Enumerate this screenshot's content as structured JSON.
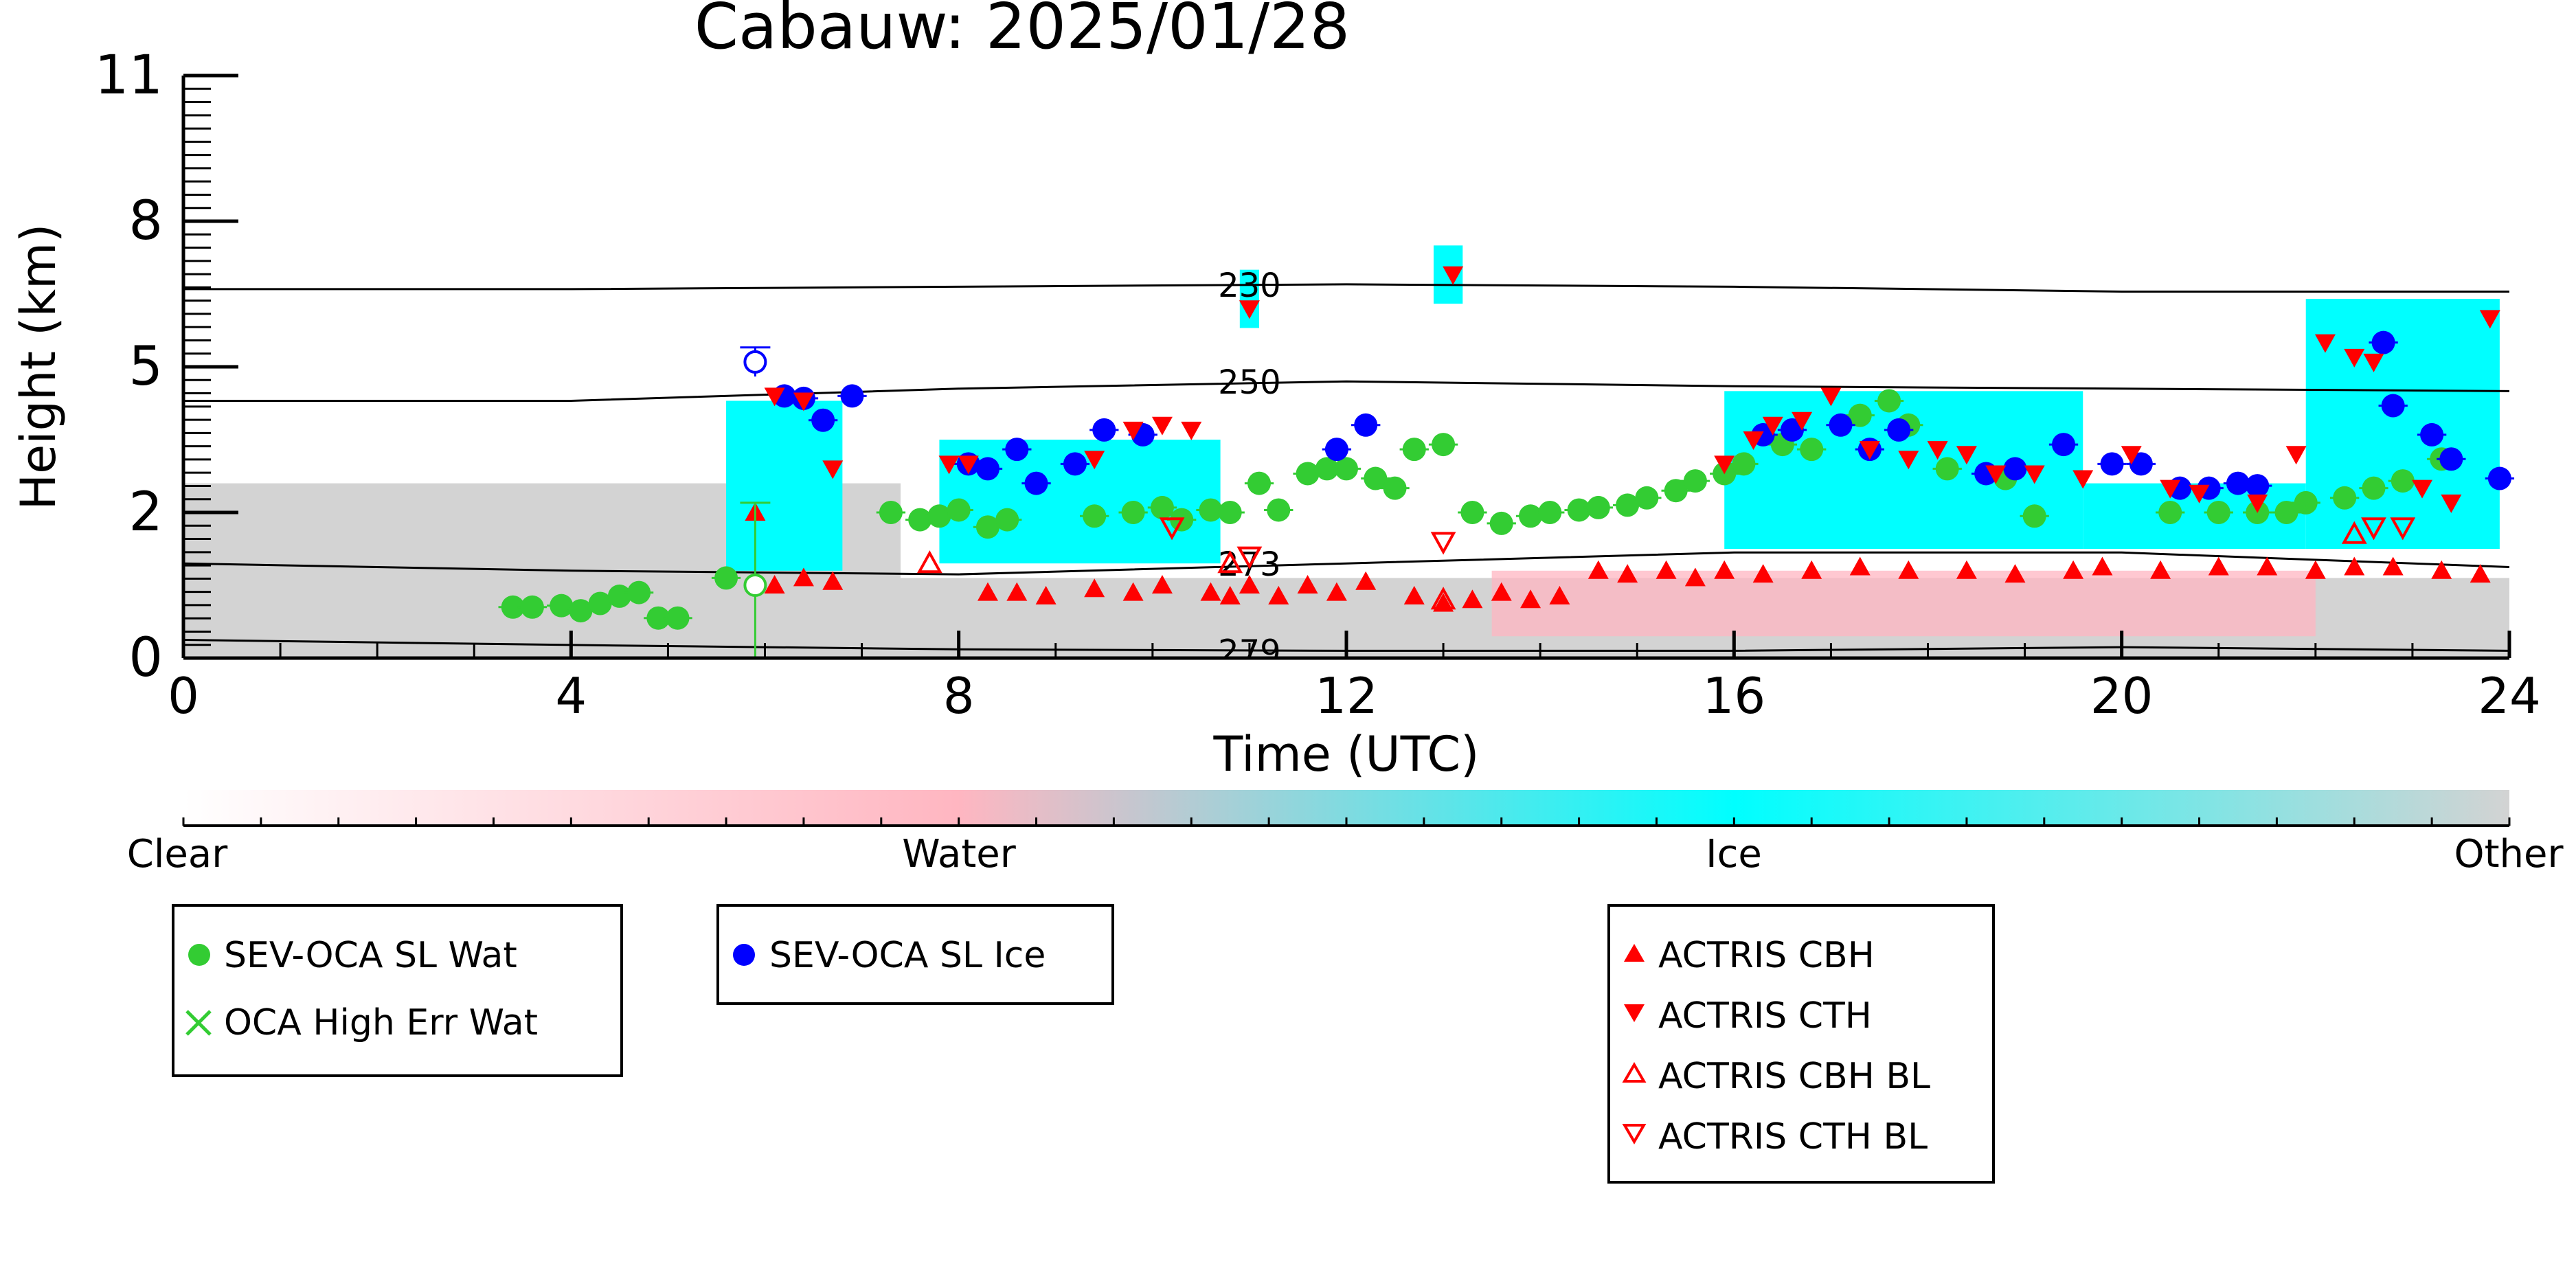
{
  "chart_data": {
    "type": "scatter",
    "title": "Cabauw: 2025/01/28",
    "xlabel": "Time (UTC)",
    "ylabel": "Height (km)",
    "xlim": [
      0,
      24
    ],
    "ylim": [
      0,
      11
    ],
    "x_ticks": [
      "0",
      "4",
      "8",
      "12",
      "16",
      "20",
      "24"
    ],
    "y_ticks": [
      "0",
      "2",
      "5",
      "8",
      "11"
    ],
    "y_tick_values": [
      0,
      2,
      5,
      8,
      11
    ],
    "colors": {
      "clear": "#ffffff",
      "water": "#ffb6c1",
      "ice": "#00ffff",
      "other": "#d3d3d3",
      "sev_wat": "#33cc33",
      "sev_ice": "#0000ff",
      "actris": "#ff0000"
    },
    "colorbar": {
      "labels": [
        "Clear",
        "Water",
        "Ice",
        "Other"
      ]
    },
    "isotherms": [
      {
        "label": "230",
        "points": [
          [
            0,
            6.6
          ],
          [
            4,
            6.6
          ],
          [
            8,
            6.65
          ],
          [
            12,
            6.7
          ],
          [
            16,
            6.65
          ],
          [
            20,
            6.55
          ],
          [
            24,
            6.55
          ]
        ]
      },
      {
        "label": "250",
        "points": [
          [
            0,
            4.3
          ],
          [
            4,
            4.3
          ],
          [
            8,
            4.55
          ],
          [
            12,
            4.7
          ],
          [
            16,
            4.6
          ],
          [
            20,
            4.55
          ],
          [
            24,
            4.5
          ]
        ]
      },
      {
        "label": "273",
        "points": [
          [
            0,
            1.3
          ],
          [
            4,
            1.2
          ],
          [
            8,
            1.15
          ],
          [
            12,
            1.3
          ],
          [
            16,
            1.45
          ],
          [
            20,
            1.45
          ],
          [
            24,
            1.25
          ]
        ]
      },
      {
        "label": "279",
        "points": [
          [
            0,
            0.25
          ],
          [
            4,
            0.18
          ],
          [
            8,
            0.12
          ],
          [
            12,
            0.1
          ],
          [
            16,
            0.1
          ],
          [
            20,
            0.15
          ],
          [
            24,
            0.1
          ]
        ]
      }
    ],
    "background": [
      {
        "category": "other",
        "x": [
          0,
          7.4
        ],
        "y": [
          0,
          2.6
        ]
      },
      {
        "category": "other",
        "x": [
          7.4,
          24
        ],
        "y": [
          0,
          1.1
        ]
      },
      {
        "category": "water",
        "x": [
          13.5,
          22
        ],
        "y": [
          0.3,
          1.2
        ]
      },
      {
        "category": "ice",
        "x": [
          5.6,
          6.8
        ],
        "y": [
          1.2,
          4.3
        ]
      },
      {
        "category": "ice",
        "x": [
          7.8,
          10.7
        ],
        "y": [
          1.3,
          3.5
        ]
      },
      {
        "category": "ice",
        "x": [
          10.9,
          11.1
        ],
        "y": [
          5.8,
          7.0
        ]
      },
      {
        "category": "ice",
        "x": [
          12.9,
          13.2
        ],
        "y": [
          6.3,
          7.5
        ]
      },
      {
        "category": "ice",
        "x": [
          15.9,
          19.6
        ],
        "y": [
          1.5,
          4.5
        ]
      },
      {
        "category": "ice",
        "x": [
          19.6,
          21.9
        ],
        "y": [
          1.5,
          2.6
        ]
      },
      {
        "category": "ice",
        "x": [
          21.9,
          23.9
        ],
        "y": [
          1.5,
          6.4
        ]
      },
      {
        "category": "ice",
        "x": [
          23.1,
          23.7
        ],
        "y": [
          5.0,
          5.8
        ]
      }
    ],
    "series": [
      {
        "name": "SEV-OCA SL Wat",
        "marker": "circle",
        "color": "#33cc33",
        "x": [
          3.4,
          3.6,
          3.9,
          4.1,
          4.3,
          4.5,
          4.7,
          4.9,
          5.1,
          5.6,
          7.3,
          7.6,
          7.8,
          8.0,
          8.3,
          8.5,
          9.4,
          9.8,
          10.1,
          10.3,
          10.6,
          10.8,
          11.1,
          11.3,
          11.6,
          11.8,
          12.0,
          12.3,
          12.5,
          12.7,
          13.0,
          13.3,
          13.6,
          13.9,
          14.1,
          14.4,
          14.6,
          14.9,
          15.1,
          15.4,
          15.6,
          15.9,
          16.1,
          16.5,
          16.8,
          17.3,
          17.6,
          17.8,
          18.2,
          18.8,
          19.1,
          20.5,
          21.0,
          21.4,
          21.7,
          21.9,
          22.3,
          22.6,
          22.9,
          23.3
        ],
        "y": [
          0.7,
          0.7,
          0.72,
          0.65,
          0.75,
          0.85,
          0.9,
          0.55,
          0.55,
          1.1,
          2.0,
          1.9,
          1.95,
          2.05,
          1.8,
          1.9,
          1.95,
          2.0,
          2.1,
          1.9,
          2.05,
          2.0,
          2.6,
          2.05,
          2.8,
          2.9,
          2.9,
          2.7,
          2.5,
          3.3,
          3.4,
          2.0,
          1.85,
          1.95,
          2.0,
          2.05,
          2.1,
          2.15,
          2.3,
          2.45,
          2.65,
          2.8,
          3.0,
          3.4,
          3.3,
          4.0,
          4.3,
          3.8,
          2.9,
          2.7,
          1.95,
          2.0,
          2.0,
          2.0,
          2.0,
          2.2,
          2.3,
          2.5,
          2.65,
          3.1
        ]
      },
      {
        "name": "OCA High Err Wat",
        "marker": "x",
        "color": "#33cc33",
        "x": [],
        "y": []
      },
      {
        "name": "SEV-OCA SL Ice",
        "marker": "circle",
        "color": "#0000ff",
        "x": [
          6.2,
          6.4,
          6.6,
          6.9,
          8.1,
          8.3,
          8.6,
          8.8,
          9.2,
          9.5,
          9.9,
          11.9,
          12.2,
          16.3,
          16.6,
          17.1,
          17.4,
          17.7,
          18.6,
          18.9,
          19.4,
          19.9,
          20.2,
          20.6,
          20.9,
          21.2,
          21.4,
          22.7,
          22.8,
          23.2,
          23.4,
          23.9
        ],
        "y": [
          4.4,
          4.35,
          3.9,
          4.4,
          3.0,
          2.9,
          3.3,
          2.6,
          3.0,
          3.7,
          3.6,
          3.3,
          3.8,
          3.6,
          3.7,
          3.8,
          3.3,
          3.7,
          2.8,
          2.9,
          3.4,
          3.0,
          3.0,
          2.5,
          2.5,
          2.6,
          2.55,
          5.5,
          4.2,
          3.6,
          3.1,
          2.7
        ]
      },
      {
        "name": "ACTRIS CBH",
        "marker": "triangle-up",
        "color": "#ff0000",
        "x": [
          5.9,
          6.1,
          6.4,
          6.7,
          8.3,
          8.6,
          8.9,
          9.4,
          9.8,
          10.1,
          10.6,
          10.8,
          11.0,
          11.3,
          11.6,
          11.9,
          12.2,
          12.7,
          13.0,
          13.3,
          13.6,
          13.9,
          14.2,
          14.6,
          14.9,
          15.3,
          15.6,
          15.9,
          16.3,
          16.8,
          17.3,
          17.8,
          18.4,
          18.9,
          19.5,
          19.8,
          20.4,
          21.0,
          21.5,
          22.0,
          22.4,
          22.8,
          23.3,
          23.7
        ],
        "y": [
          2.0,
          1.0,
          1.1,
          1.05,
          0.9,
          0.9,
          0.85,
          0.95,
          0.9,
          1.0,
          0.9,
          0.85,
          1.0,
          0.85,
          1.0,
          0.9,
          1.05,
          0.85,
          0.75,
          0.8,
          0.9,
          0.8,
          0.85,
          1.2,
          1.15,
          1.2,
          1.1,
          1.2,
          1.15,
          1.2,
          1.25,
          1.2,
          1.2,
          1.15,
          1.2,
          1.25,
          1.2,
          1.25,
          1.25,
          1.2,
          1.25,
          1.25,
          1.2,
          1.15
        ]
      },
      {
        "name": "ACTRIS CTH",
        "marker": "triangle-down",
        "color": "#ff0000",
        "x": [
          6.1,
          6.4,
          6.7,
          7.9,
          8.1,
          9.4,
          9.8,
          10.1,
          10.4,
          11.0,
          13.1,
          15.9,
          16.2,
          16.4,
          16.7,
          17.0,
          17.4,
          17.8,
          18.1,
          18.4,
          18.7,
          19.1,
          19.6,
          20.1,
          20.5,
          20.8,
          21.4,
          21.8,
          22.1,
          22.4,
          22.6,
          23.1,
          23.4,
          23.8
        ],
        "y": [
          4.4,
          4.3,
          2.9,
          3.0,
          3.0,
          3.1,
          3.7,
          3.8,
          3.7,
          6.2,
          6.9,
          3.0,
          3.5,
          3.8,
          3.9,
          4.4,
          3.3,
          3.1,
          3.3,
          3.2,
          2.8,
          2.8,
          2.7,
          3.2,
          2.5,
          2.4,
          2.2,
          3.2,
          5.5,
          5.2,
          5.1,
          2.5,
          2.2,
          6.0
        ]
      },
      {
        "name": "ACTRIS CBH BL",
        "marker": "triangle-up-open",
        "color": "#ff0000",
        "x": [
          7.7,
          10.8,
          13.0,
          22.4
        ],
        "y": [
          1.3,
          1.3,
          0.8,
          1.7
        ]
      },
      {
        "name": "ACTRIS CTH BL",
        "marker": "triangle-down-open",
        "color": "#ff0000",
        "x": [
          10.2,
          11.0,
          13.0,
          22.6,
          22.9
        ],
        "y": [
          1.8,
          1.4,
          1.6,
          1.8,
          1.8
        ]
      }
    ],
    "open_markers": [
      {
        "series": "SEV-OCA SL Ice",
        "x": 5.9,
        "y": 5.1,
        "err": [
          4.8,
          5.4
        ]
      },
      {
        "series": "SEV-OCA SL Wat",
        "x": 5.9,
        "y": 1.0,
        "err": [
          0.0,
          2.2
        ]
      }
    ],
    "legend": {
      "placement": "below",
      "groups": [
        [
          "SEV-OCA SL Wat",
          "OCA High Err Wat"
        ],
        [
          "SEV-OCA SL Ice"
        ],
        [
          "ACTRIS CBH",
          "ACTRIS CTH",
          "ACTRIS CBH BL",
          "ACTRIS CTH BL"
        ]
      ]
    },
    "grid": false
  }
}
